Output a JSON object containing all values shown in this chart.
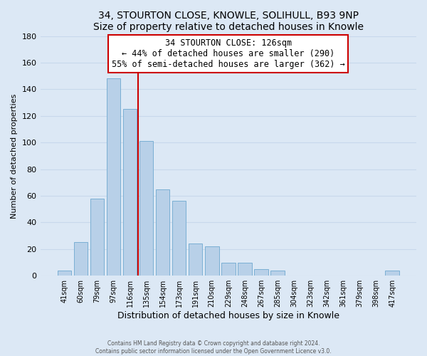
{
  "title": "34, STOURTON CLOSE, KNOWLE, SOLIHULL, B93 9NP",
  "subtitle": "Size of property relative to detached houses in Knowle",
  "xlabel": "Distribution of detached houses by size in Knowle",
  "ylabel": "Number of detached properties",
  "bar_labels": [
    "41sqm",
    "60sqm",
    "79sqm",
    "97sqm",
    "116sqm",
    "135sqm",
    "154sqm",
    "173sqm",
    "191sqm",
    "210sqm",
    "229sqm",
    "248sqm",
    "267sqm",
    "285sqm",
    "304sqm",
    "323sqm",
    "342sqm",
    "361sqm",
    "379sqm",
    "398sqm",
    "417sqm"
  ],
  "bar_values": [
    4,
    25,
    58,
    148,
    125,
    101,
    65,
    56,
    24,
    22,
    10,
    10,
    5,
    4,
    0,
    0,
    0,
    0,
    0,
    0,
    4
  ],
  "bar_color": "#b8d0e8",
  "bar_edge_color": "#7aafd4",
  "property_line_label": "34 STOURTON CLOSE: 126sqm",
  "annotation_line1": "← 44% of detached houses are smaller (290)",
  "annotation_line2": "55% of semi-detached houses are larger (362) →",
  "ylim": [
    0,
    180
  ],
  "yticks": [
    0,
    20,
    40,
    60,
    80,
    100,
    120,
    140,
    160,
    180
  ],
  "bg_color": "#dce8f5",
  "plot_bg_color": "#dce8f5",
  "footer_line1": "Contains HM Land Registry data © Crown copyright and database right 2024.",
  "footer_line2": "Contains public sector information licensed under the Open Government Licence v3.0.",
  "annotation_box_color": "#ffffff",
  "annotation_box_edge": "#cc0000",
  "red_line_color": "#cc0000",
  "grid_color": "#c8d8ec"
}
